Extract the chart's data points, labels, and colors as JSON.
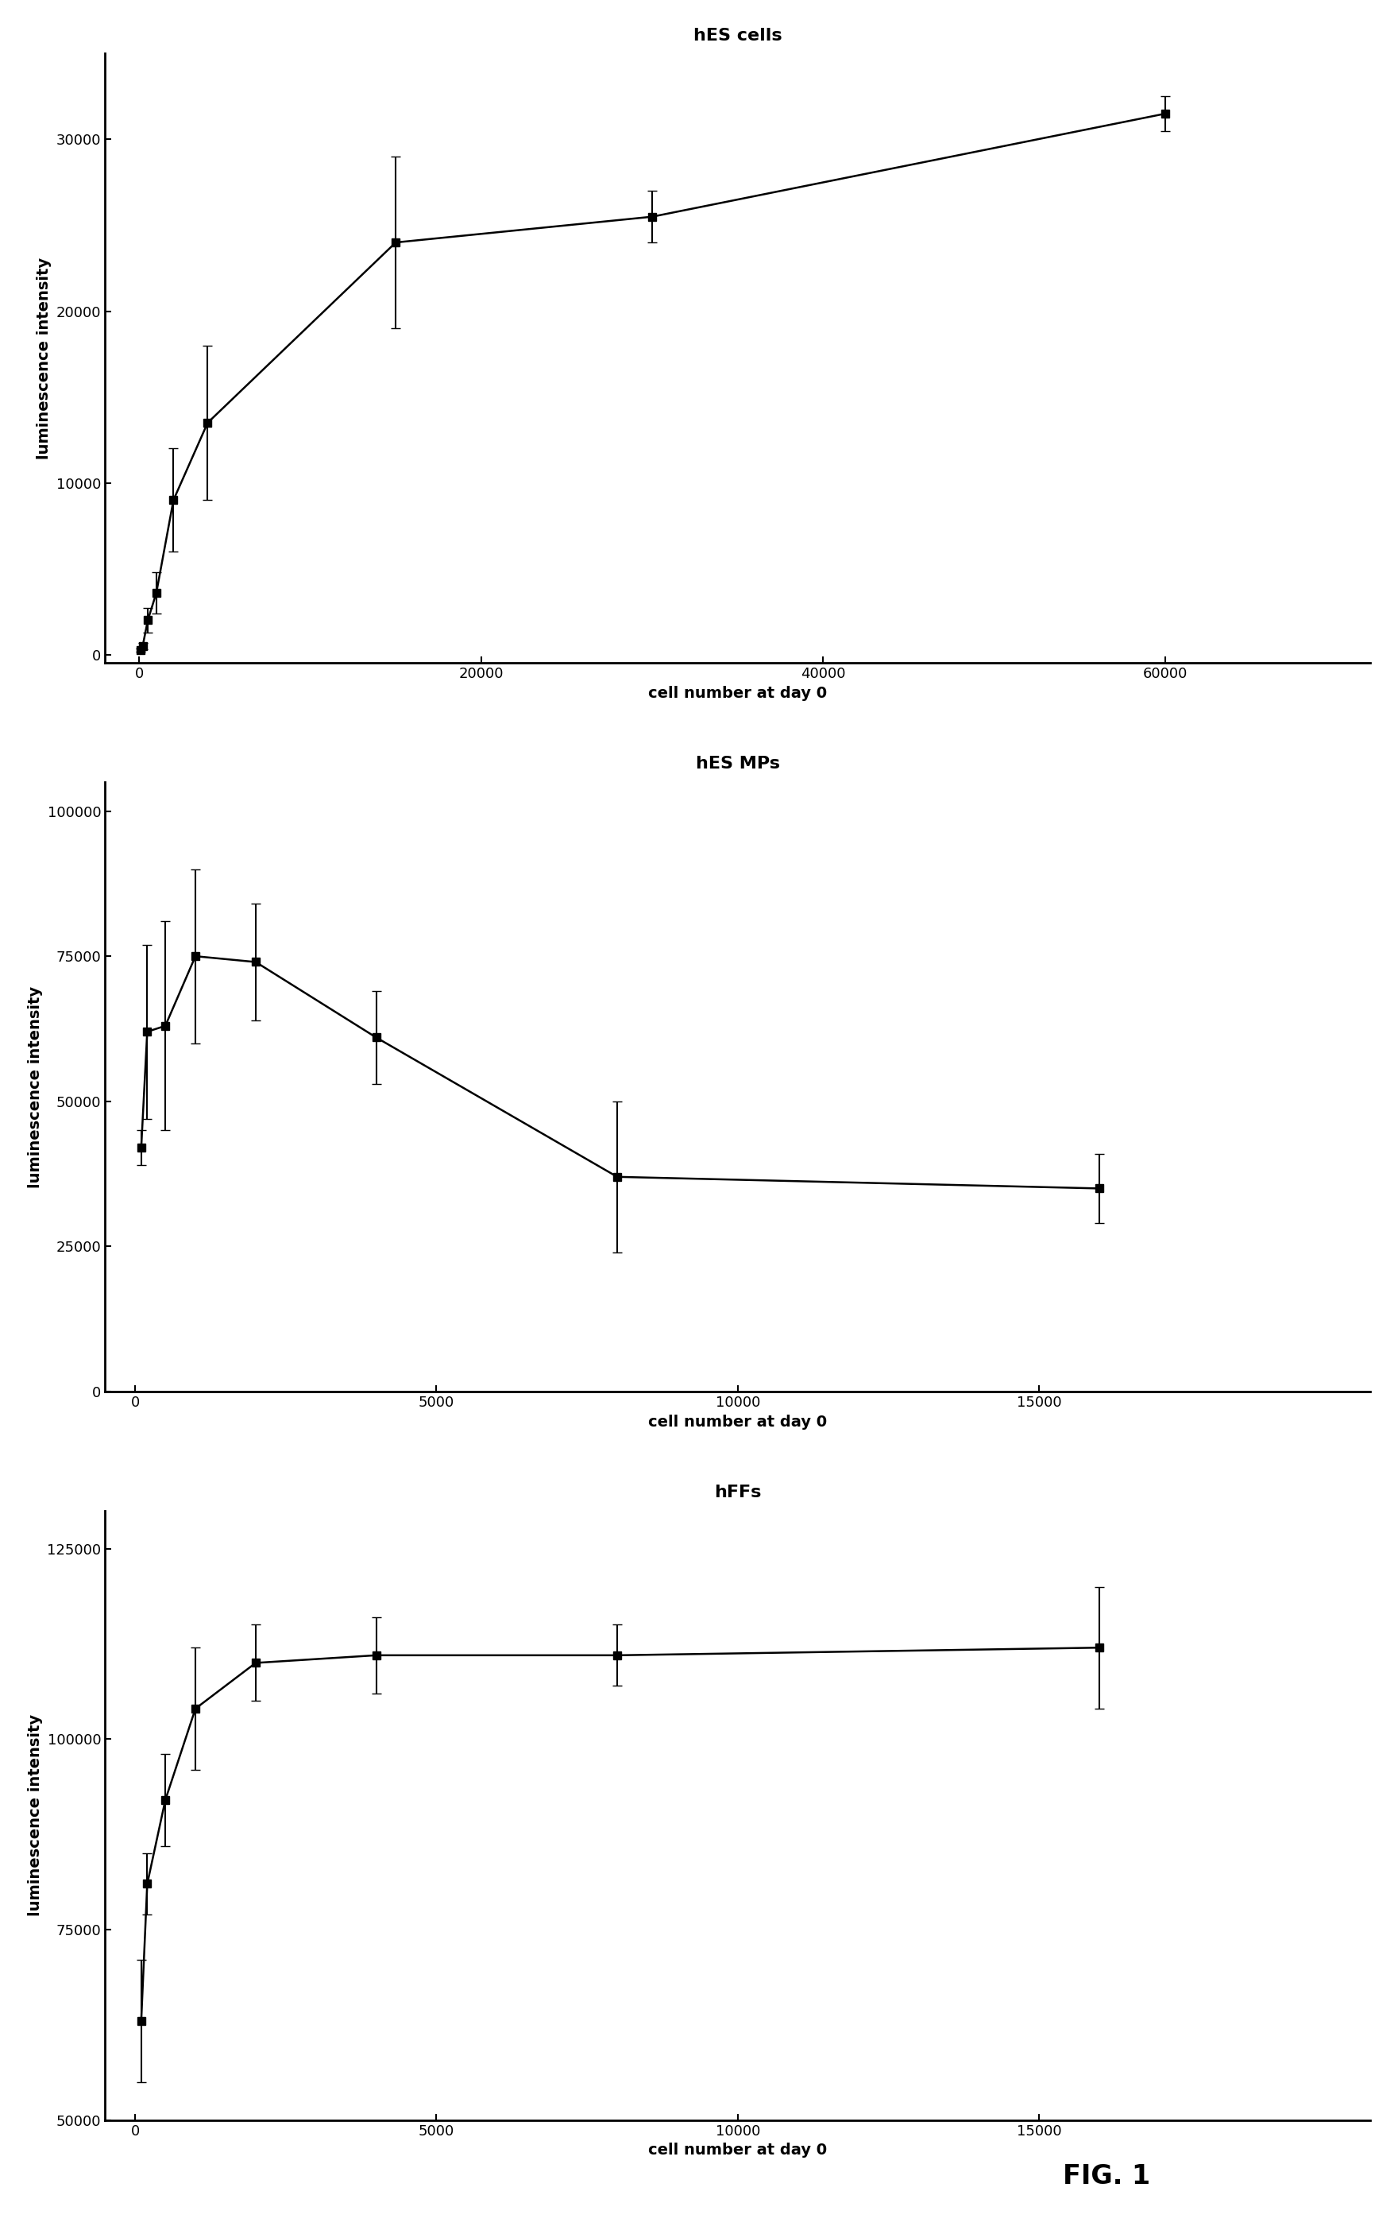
{
  "plot1": {
    "title": "hES cells",
    "xlabel": "cell number at day 0",
    "ylabel": "luminescence intensity",
    "x": [
      100,
      200,
      500,
      1000,
      2000,
      4000,
      15000,
      30000,
      60000
    ],
    "y": [
      250,
      500,
      2000,
      3600,
      9000,
      13500,
      24000,
      25500,
      31500
    ],
    "yerr": [
      100,
      200,
      700,
      1200,
      3000,
      4500,
      5000,
      1500,
      1000
    ],
    "xlim": [
      -2000,
      72000
    ],
    "ylim": [
      -500,
      35000
    ],
    "yticks": [
      0,
      10000,
      20000,
      30000
    ],
    "xticks": [
      0,
      20000,
      40000,
      60000
    ]
  },
  "plot2": {
    "title": "hES MPs",
    "xlabel": "cell number at day 0",
    "ylabel": "luminescence intensity",
    "x": [
      100,
      200,
      500,
      1000,
      2000,
      4000,
      8000,
      16000
    ],
    "y": [
      42000,
      62000,
      63000,
      75000,
      74000,
      61000,
      37000,
      35000
    ],
    "yerr": [
      3000,
      15000,
      18000,
      15000,
      10000,
      8000,
      13000,
      6000
    ],
    "xlim": [
      -500,
      20500
    ],
    "ylim": [
      0,
      105000
    ],
    "yticks": [
      0,
      25000,
      50000,
      75000,
      100000
    ],
    "xticks": [
      0,
      5000,
      10000,
      15000
    ]
  },
  "plot3": {
    "title": "hFFs",
    "xlabel": "cell number at day 0",
    "ylabel": "luminescence intensity",
    "x": [
      100,
      200,
      500,
      1000,
      2000,
      4000,
      8000,
      16000
    ],
    "y": [
      63000,
      81000,
      92000,
      104000,
      110000,
      111000,
      111000,
      112000
    ],
    "yerr": [
      8000,
      4000,
      6000,
      8000,
      5000,
      5000,
      4000,
      8000
    ],
    "xlim": [
      -500,
      20500
    ],
    "ylim": [
      50000,
      130000
    ],
    "yticks": [
      50000,
      75000,
      100000,
      125000
    ],
    "xticks": [
      0,
      5000,
      10000,
      15000
    ]
  },
  "line_color": "#000000",
  "marker": "s",
  "markersize": 7,
  "linewidth": 1.8,
  "capsize": 4,
  "elinewidth": 1.5,
  "title_fontsize": 16,
  "label_fontsize": 14,
  "tick_fontsize": 13,
  "fig_label": "FIG. 1",
  "fig_label_fontsize": 24
}
